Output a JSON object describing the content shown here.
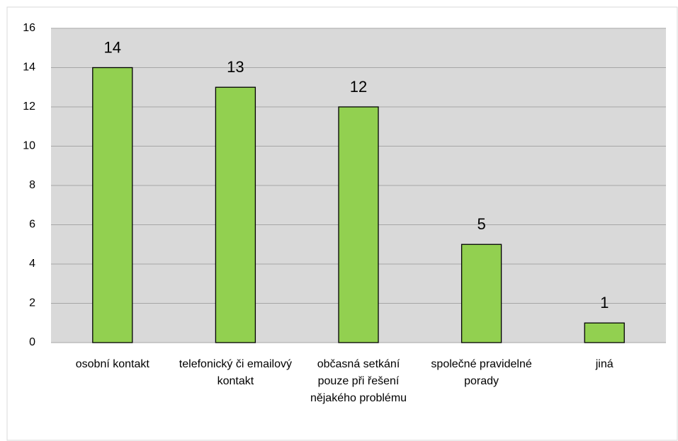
{
  "chart_data": {
    "type": "bar",
    "categories": [
      "osobní kontakt",
      "telefonický či emailový kontakt",
      "občasná setkání pouze při řešení nějakého problému",
      "společné pravidelné porady",
      "jiná"
    ],
    "values": [
      14,
      13,
      12,
      5,
      1
    ],
    "color": "#92d050",
    "ylim": [
      0,
      16
    ],
    "yticks": [
      0,
      2,
      4,
      6,
      8,
      10,
      12,
      14,
      16
    ],
    "grid": true
  }
}
